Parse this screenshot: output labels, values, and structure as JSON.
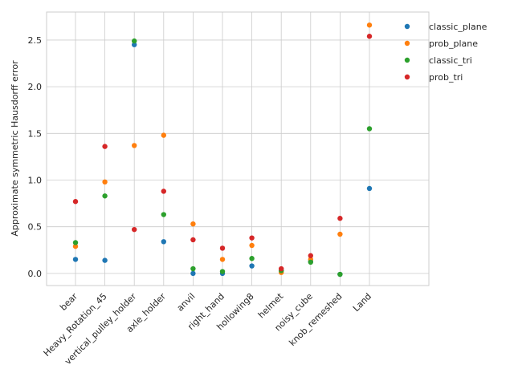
{
  "chart_data": {
    "type": "scatter",
    "title": "",
    "xlabel": "",
    "ylabel": "Approximate symmetric Hausdorff error",
    "categories": [
      "bear",
      "Heavy_Rotation_45",
      "vertical_pulley_holder",
      "axle_holder",
      "anvil",
      "right_hand",
      "hollowing8",
      "helmet",
      "noisy_cube",
      "knob_remeshed",
      "Land"
    ],
    "ylim": [
      -0.13,
      2.8
    ],
    "yticks": [
      0.0,
      0.5,
      1.0,
      1.5,
      2.0,
      2.5
    ],
    "ytick_labels": [
      "0.0",
      "0.5",
      "1.0",
      "1.5",
      "2.0",
      "2.5"
    ],
    "grid": true,
    "legend_position": "top-right outside",
    "series": [
      {
        "name": "classic_plane",
        "color": "#1f77b4",
        "values": [
          0.15,
          0.14,
          2.45,
          0.34,
          0.0,
          0.0,
          0.08,
          0.03,
          0.13,
          -0.01,
          0.91
        ]
      },
      {
        "name": "prob_plane",
        "color": "#ff7f0e",
        "values": [
          0.29,
          0.98,
          1.37,
          1.48,
          0.53,
          0.15,
          0.3,
          0.01,
          0.15,
          0.42,
          2.66
        ]
      },
      {
        "name": "classic_tri",
        "color": "#2ca02c",
        "values": [
          0.33,
          0.83,
          2.49,
          0.63,
          0.05,
          0.02,
          0.16,
          0.03,
          0.12,
          -0.01,
          1.55
        ]
      },
      {
        "name": "prob_tri",
        "color": "#d62728",
        "values": [
          0.77,
          1.36,
          0.47,
          0.88,
          0.36,
          0.27,
          0.38,
          0.05,
          0.19,
          0.59,
          2.54
        ]
      }
    ]
  }
}
